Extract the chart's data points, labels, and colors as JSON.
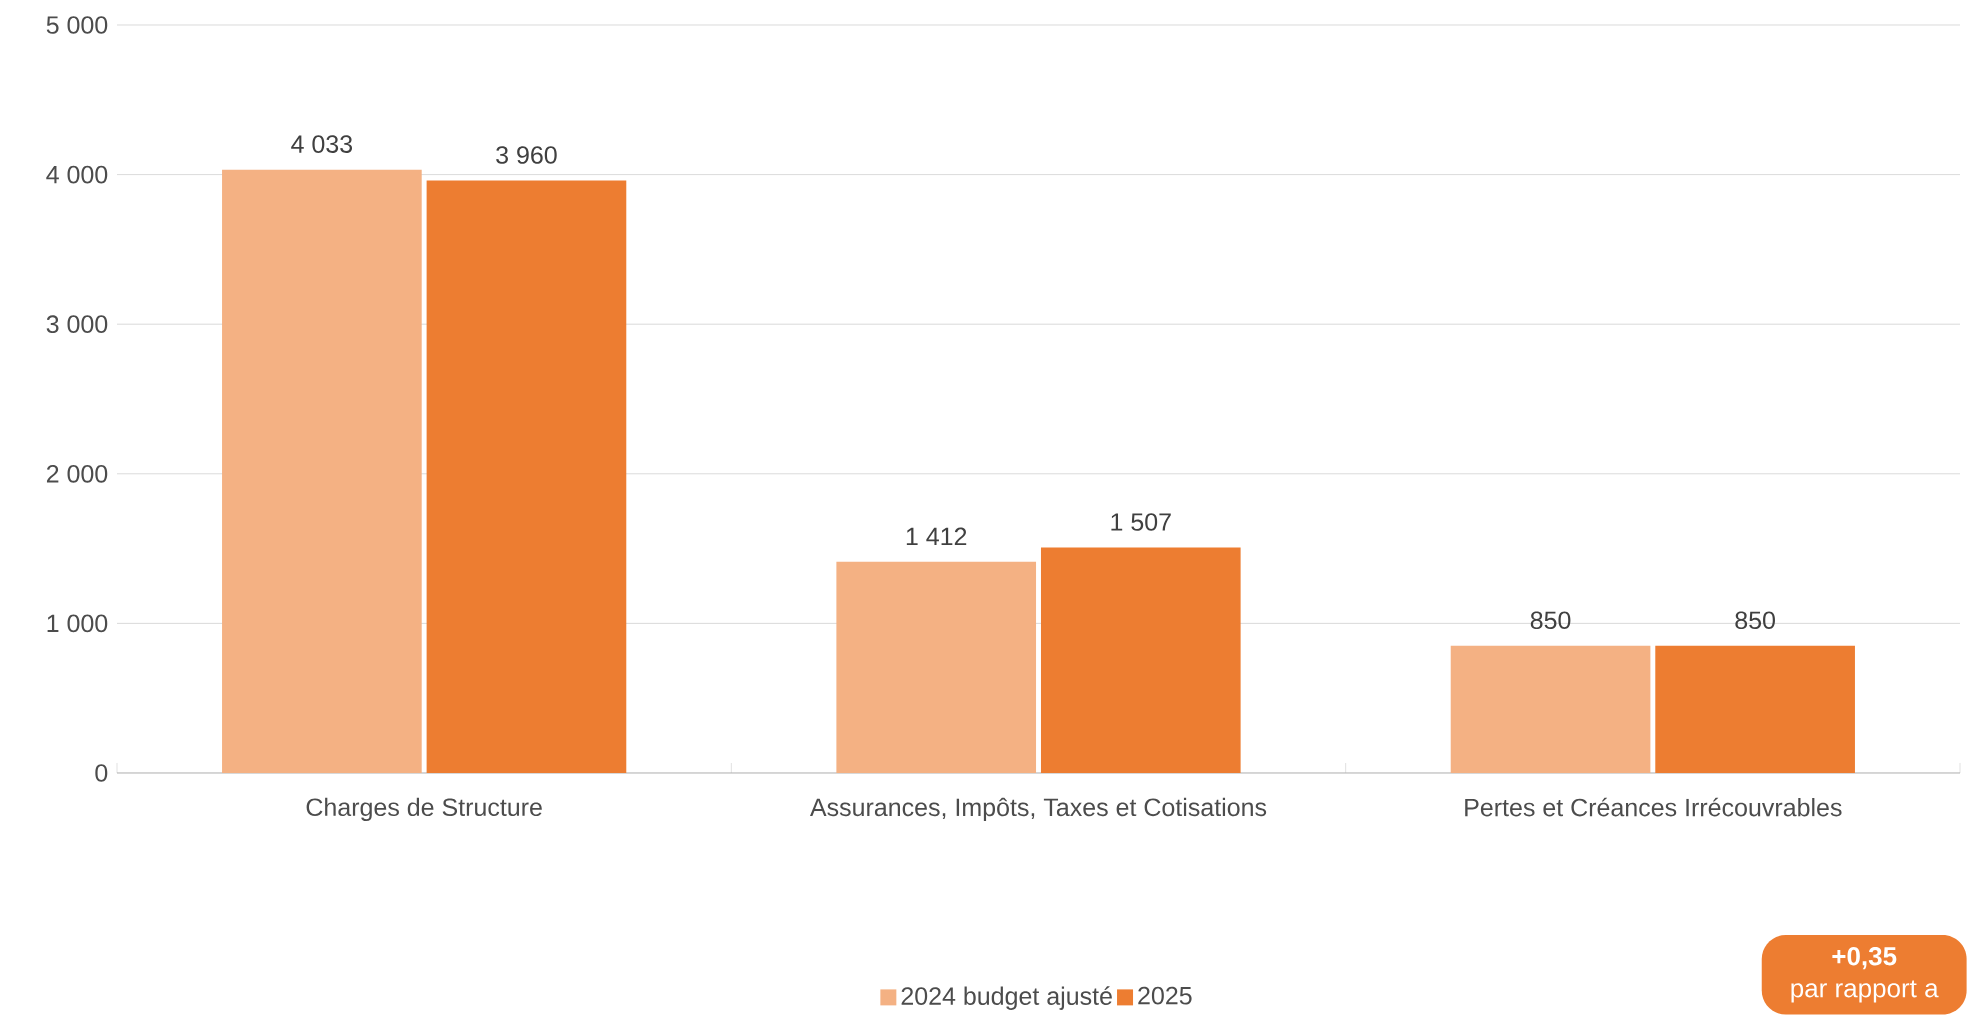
{
  "chart_data": {
    "type": "bar",
    "categories": [
      "Charges de Structure",
      "Assurances, Impôts, Taxes et Cotisations",
      "Pertes et Créances Irrécouvrables"
    ],
    "series": [
      {
        "name": "2024 budget ajusté",
        "color": "#f4b183",
        "values": [
          4033,
          1412,
          850
        ],
        "value_labels": [
          "4 033",
          "1 412",
          "850"
        ]
      },
      {
        "name": "2025",
        "color": "#ed7d31",
        "values": [
          3960,
          1507,
          850
        ],
        "value_labels": [
          "3 960",
          "1 507",
          "850"
        ]
      }
    ],
    "ylim": [
      0,
      5000
    ],
    "yticks": [
      {
        "value": 0,
        "label": "0"
      },
      {
        "value": 1000,
        "label": "1 000"
      },
      {
        "value": 2000,
        "label": "2 000"
      },
      {
        "value": 3000,
        "label": "3 000"
      },
      {
        "value": 4000,
        "label": "4 000"
      },
      {
        "value": 5000,
        "label": "5 000"
      }
    ],
    "grid": "y",
    "legend": "bottom",
    "annotations": [
      "+0,35",
      "par rapport a"
    ]
  }
}
